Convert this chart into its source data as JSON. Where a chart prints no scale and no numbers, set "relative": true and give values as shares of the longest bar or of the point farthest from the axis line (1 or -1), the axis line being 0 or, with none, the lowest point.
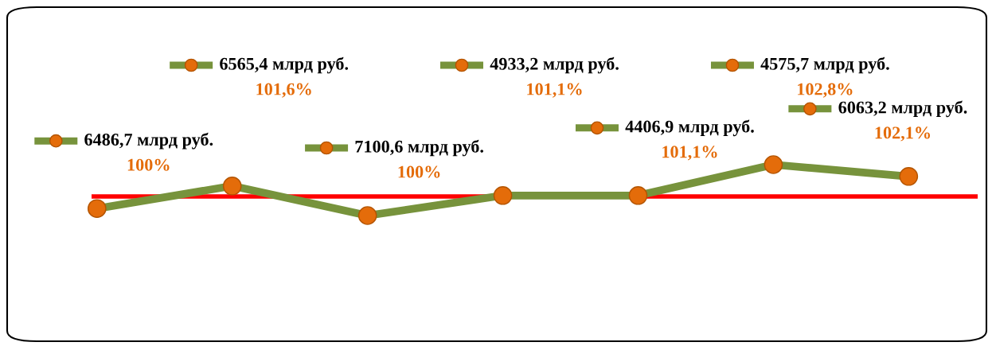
{
  "chart_data": {
    "type": "line",
    "relative": true,
    "categories": [
      null,
      null,
      null,
      null,
      null,
      null,
      null
    ],
    "series": [
      {
        "color": "#77933c",
        "values": [
          -0.38,
          0.33,
          -0.6,
          0.03,
          0.03,
          1,
          0.63
        ]
      }
    ],
    "annotations": [
      "6486,7 млрд руб.\n100%",
      "6565,4 млрд руб.\n101,6%",
      "7100,6 млрд руб.\n100%",
      "4933,2 млрд руб.\n101,1%",
      "4406,9 млрд руб.\n101,1%",
      "4575,7 млрд руб.\n102,8%",
      "6063,2 млрд руб.\n102,1%"
    ],
    "marker": "circle",
    "line_style": "solid",
    "ref_lines": [
      {
        "axis": "y",
        "value": 0,
        "color": "#ff0000",
        "line_style": "solid"
      }
    ]
  }
}
